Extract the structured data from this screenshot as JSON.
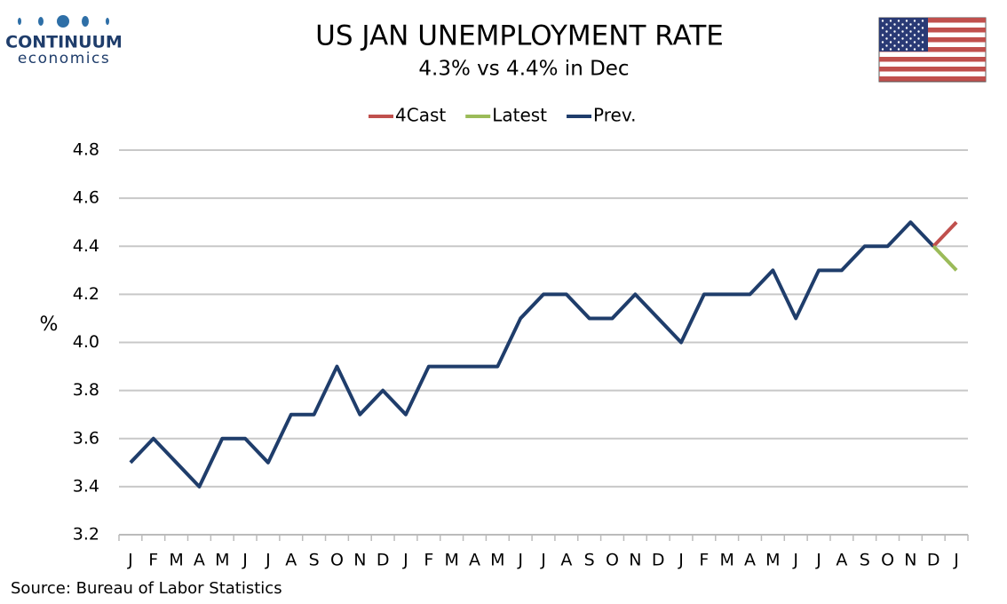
{
  "logo": {
    "name": "CONTINUUM",
    "tagline": "economics"
  },
  "source": "Source: Bureau of Labor Statistics",
  "chart_data": {
    "type": "line",
    "title": "US JAN UNEMPLOYMENT RATE",
    "subtitle": "4.3% vs 4.4% in Dec",
    "y_label": "%",
    "categories": [
      "J",
      "F",
      "M",
      "A",
      "M",
      "J",
      "J",
      "A",
      "S",
      "O",
      "N",
      "D",
      "J",
      "F",
      "M",
      "A",
      "M",
      "J",
      "J",
      "A",
      "S",
      "O",
      "N",
      "D",
      "J",
      "F",
      "M",
      "A",
      "M",
      "J",
      "J",
      "A",
      "S",
      "O",
      "N",
      "D",
      "J"
    ],
    "series": [
      {
        "name": "4Cast",
        "color": "#c0504d",
        "values": [
          null,
          null,
          null,
          null,
          null,
          null,
          null,
          null,
          null,
          null,
          null,
          null,
          null,
          null,
          null,
          null,
          null,
          null,
          null,
          null,
          null,
          null,
          null,
          null,
          null,
          null,
          null,
          null,
          null,
          null,
          null,
          null,
          null,
          null,
          null,
          4.4,
          4.5
        ]
      },
      {
        "name": "Latest",
        "color": "#9bbb59",
        "values": [
          null,
          null,
          null,
          null,
          null,
          null,
          null,
          null,
          null,
          null,
          null,
          null,
          null,
          null,
          null,
          null,
          null,
          null,
          null,
          null,
          null,
          null,
          null,
          null,
          null,
          null,
          null,
          null,
          null,
          null,
          null,
          null,
          null,
          null,
          null,
          4.4,
          4.3
        ]
      },
      {
        "name": "Prev.",
        "color": "#1f3d6b",
        "values": [
          3.5,
          3.6,
          3.5,
          3.4,
          3.6,
          3.6,
          3.5,
          3.7,
          3.7,
          3.9,
          3.7,
          3.8,
          3.7,
          3.9,
          3.9,
          3.9,
          3.9,
          4.1,
          4.2,
          4.2,
          4.1,
          4.1,
          4.2,
          4.1,
          4.0,
          4.2,
          4.2,
          4.2,
          4.3,
          4.1,
          4.3,
          4.3,
          4.4,
          4.4,
          4.5,
          4.4,
          null
        ]
      }
    ],
    "ylim": [
      3.2,
      4.8
    ],
    "yticks": [
      3.2,
      3.4,
      3.6,
      3.8,
      {
        "value": 4,
        "label": "4.0"
      },
      4.2,
      4.4,
      4.6,
      4.8
    ],
    "grid": true,
    "legend": "top"
  }
}
